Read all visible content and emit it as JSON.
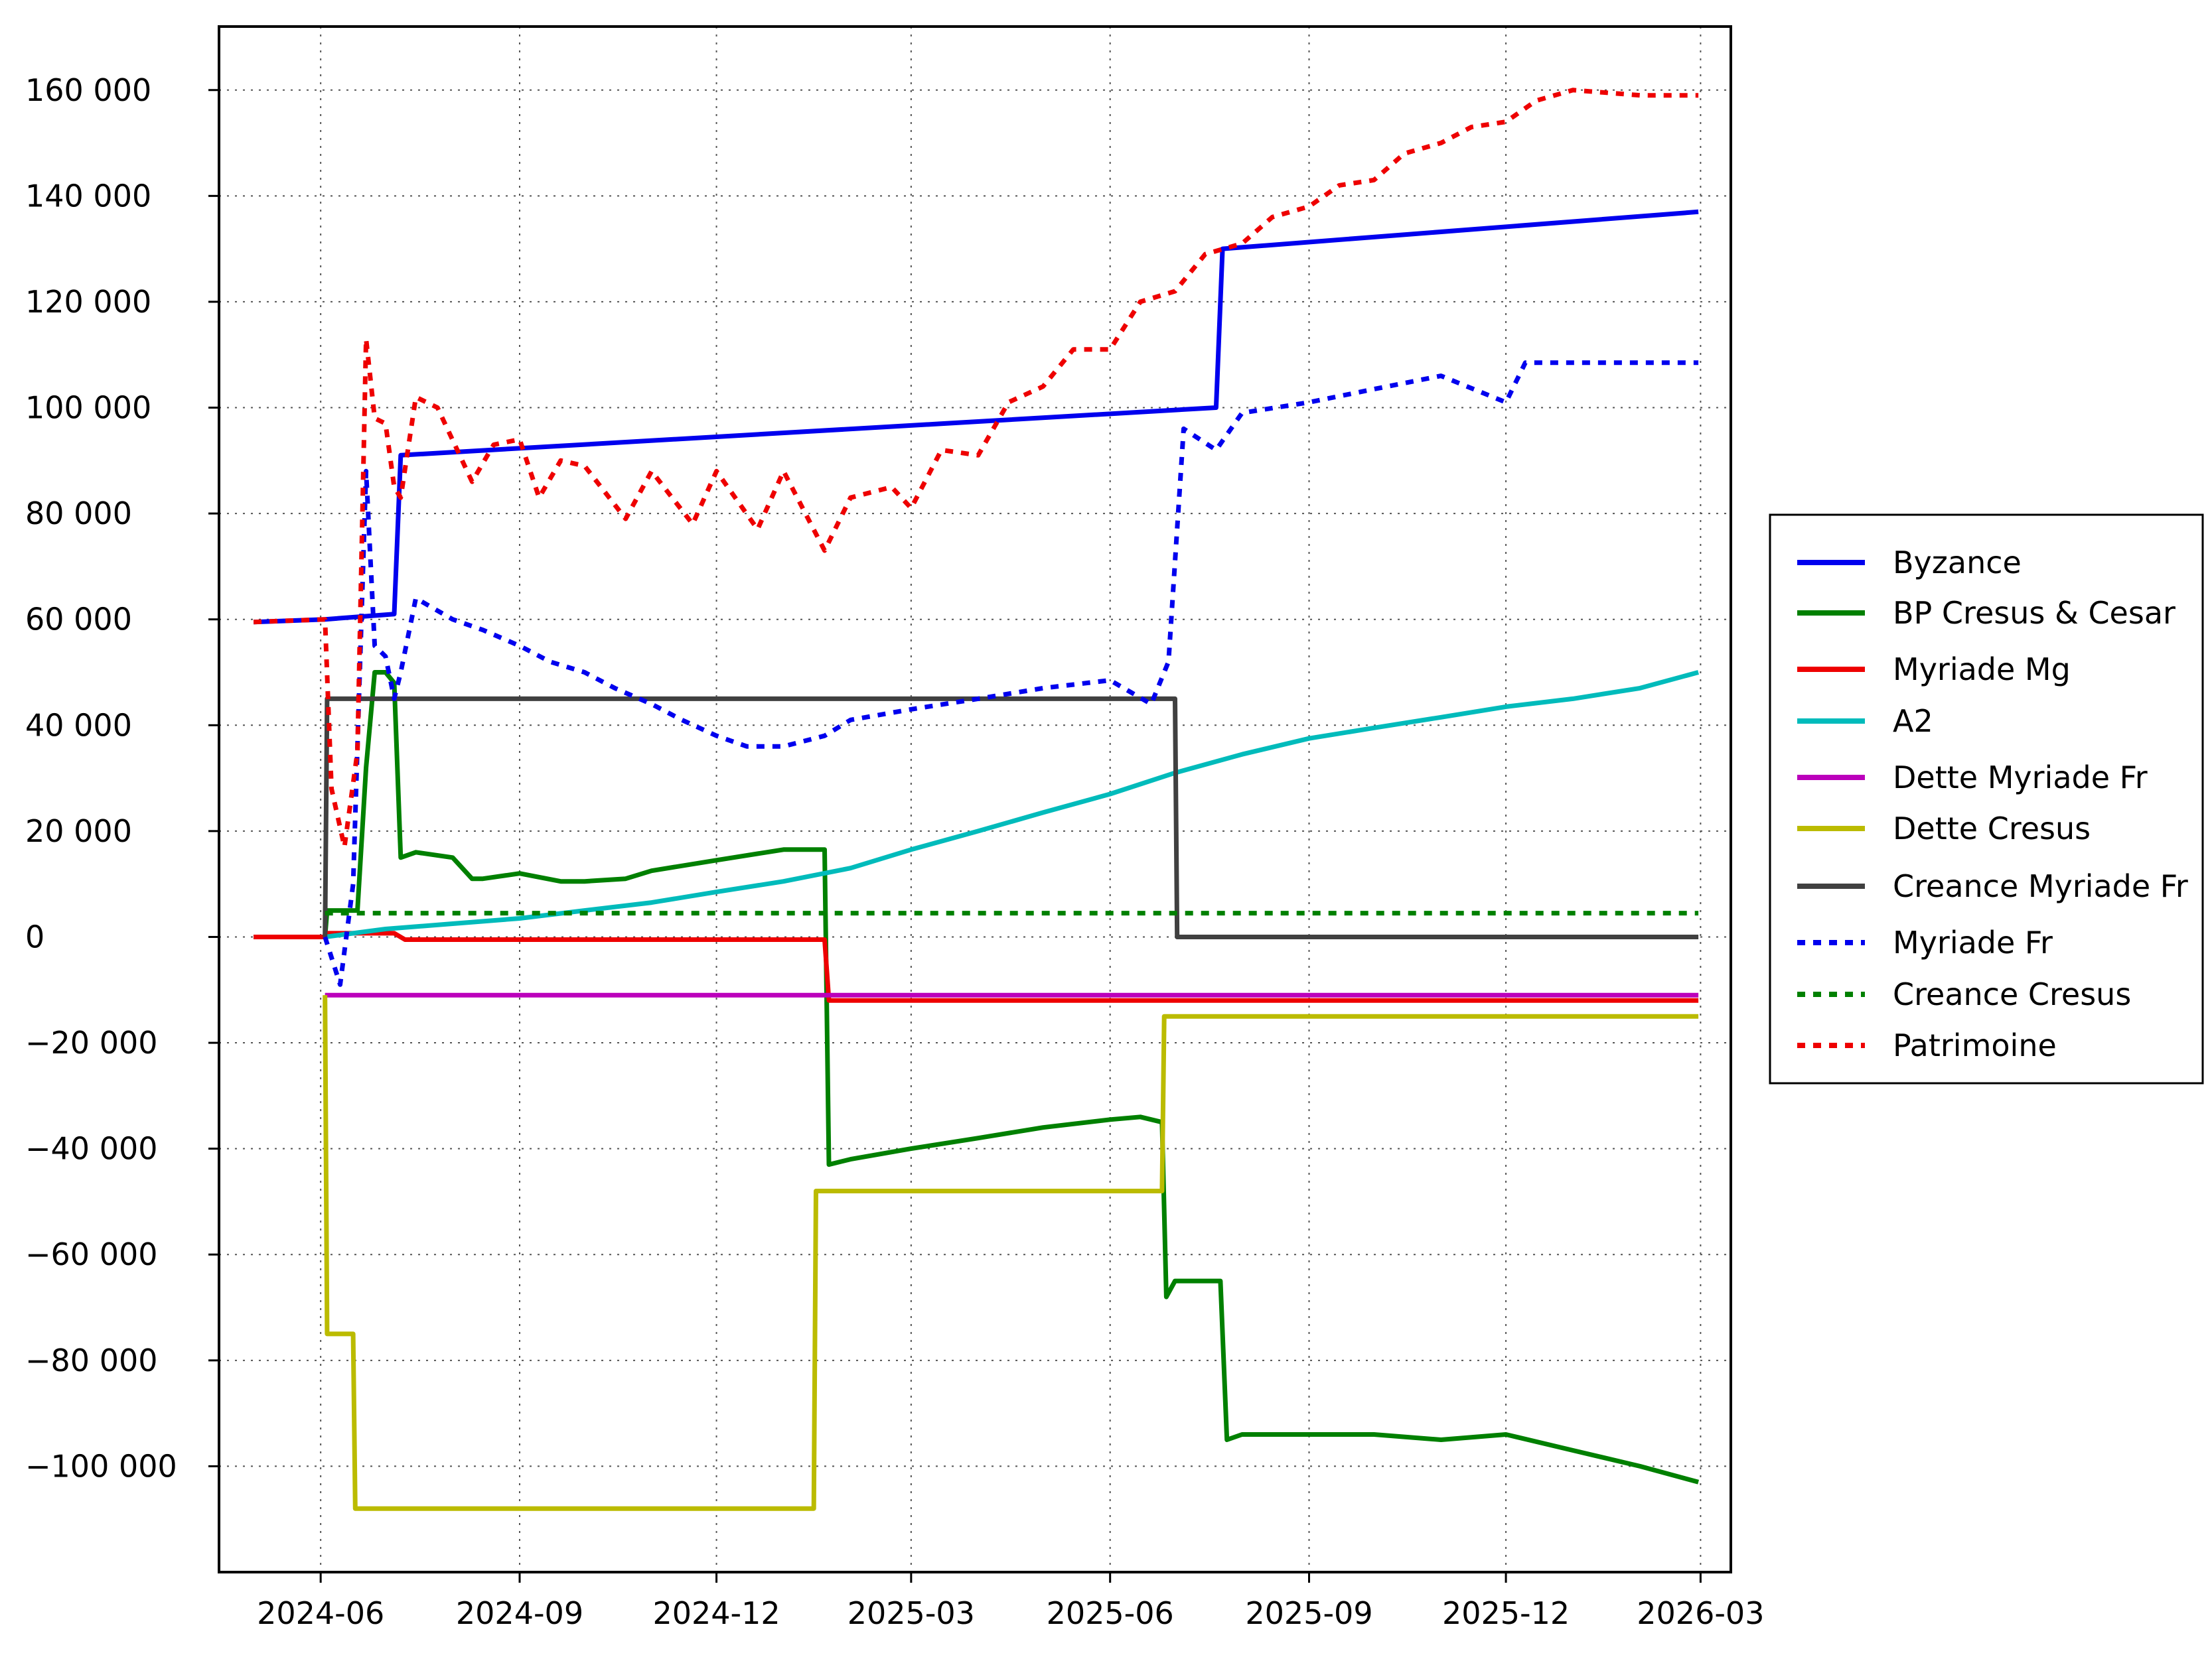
{
  "chart_data": {
    "type": "line",
    "title": "",
    "xlabel": "",
    "ylabel": "",
    "x_ticks": [
      "2024-06",
      "2024-09",
      "2024-12",
      "2025-03",
      "2025-06",
      "2025-09",
      "2025-12",
      "2026-03"
    ],
    "y_ticks": [
      {
        "value": 160000,
        "label": "160 000"
      },
      {
        "value": 140000,
        "label": "140 000"
      },
      {
        "value": 120000,
        "label": "120 000"
      },
      {
        "value": 100000,
        "label": "100 000"
      },
      {
        "value": 80000,
        "label": "80 000"
      },
      {
        "value": 60000,
        "label": "60 000"
      },
      {
        "value": 40000,
        "label": "40 000"
      },
      {
        "value": 20000,
        "label": "20 000"
      },
      {
        "value": 0,
        "label": "0"
      },
      {
        "value": -20000,
        "label": "−20 000"
      },
      {
        "value": -40000,
        "label": "−40 000"
      },
      {
        "value": -60000,
        "label": "−60 000"
      },
      {
        "value": -80000,
        "label": "−80 000"
      },
      {
        "value": -100000,
        "label": "−100 000"
      }
    ],
    "xlim": [
      "2024-04-15",
      "2026-03-15"
    ],
    "ylim": [
      -120000,
      172000
    ],
    "grid": true,
    "legend_position": "right",
    "series": [
      {
        "name": "Byzance",
        "color": "#0000ee",
        "style": "solid",
        "x": [
          "2024-05-01",
          "2024-06-03",
          "2024-07-05",
          "2024-07-08",
          "2025-07-20",
          "2025-07-23",
          "2026-02-28"
        ],
        "y": [
          59500,
          60000,
          61000,
          91000,
          100000,
          130000,
          137000
        ]
      },
      {
        "name": "BP Cresus & Cesar",
        "color": "#008000",
        "style": "solid",
        "x": [
          "2024-05-01",
          "2024-06-03",
          "2024-06-04",
          "2024-06-18",
          "2024-06-22",
          "2024-06-26",
          "2024-07-01",
          "2024-07-05",
          "2024-07-08",
          "2024-07-15",
          "2024-08-01",
          "2024-08-10",
          "2024-08-15",
          "2024-09-01",
          "2024-09-20",
          "2024-10-01",
          "2024-10-20",
          "2024-11-01",
          "2024-12-01",
          "2025-01-01",
          "2025-01-20",
          "2025-01-22",
          "2025-02-01",
          "2025-03-01",
          "2025-04-01",
          "2025-05-01",
          "2025-06-01",
          "2025-06-15",
          "2025-06-25",
          "2025-06-27",
          "2025-07-01",
          "2025-07-22",
          "2025-07-25",
          "2025-08-01",
          "2025-09-01",
          "2025-10-01",
          "2025-11-01",
          "2025-12-01",
          "2026-01-01",
          "2026-02-01",
          "2026-02-28"
        ],
        "y": [
          0,
          0,
          5000,
          5000,
          32000,
          50000,
          50000,
          48000,
          15000,
          16000,
          15000,
          11000,
          11000,
          12000,
          10500,
          10500,
          11000,
          12500,
          14500,
          16500,
          16500,
          -43000,
          -42000,
          -40000,
          -38000,
          -36000,
          -34500,
          -34000,
          -35000,
          -68000,
          -65000,
          -65000,
          -95000,
          -94000,
          -94000,
          -94000,
          -95000,
          -94000,
          -97000,
          -100000,
          -103000
        ]
      },
      {
        "name": "Myriade Mg",
        "color": "#ee0000",
        "style": "solid",
        "x": [
          "2024-05-01",
          "2024-06-03",
          "2024-06-04",
          "2024-07-05",
          "2024-07-10",
          "2025-01-20",
          "2025-01-22",
          "2026-02-28"
        ],
        "y": [
          0,
          0,
          700,
          700,
          -500,
          -500,
          -12000,
          -12000
        ]
      },
      {
        "name": "A2",
        "color": "#00bbbb",
        "style": "solid",
        "x": [
          "2024-06-03",
          "2024-07-01",
          "2024-08-01",
          "2024-09-01",
          "2024-10-01",
          "2024-11-01",
          "2024-12-01",
          "2025-01-01",
          "2025-02-01",
          "2025-03-01",
          "2025-04-01",
          "2025-05-01",
          "2025-06-01",
          "2025-07-01",
          "2025-08-01",
          "2025-09-01",
          "2025-10-01",
          "2025-11-01",
          "2025-12-01",
          "2026-01-01",
          "2026-02-01",
          "2026-02-28"
        ],
        "y": [
          0,
          1500,
          2500,
          3500,
          5000,
          6500,
          8500,
          10500,
          13000,
          16500,
          20000,
          23500,
          27000,
          31000,
          34500,
          37500,
          39500,
          41500,
          43500,
          45000,
          47000,
          50000
        ]
      },
      {
        "name": "Dette Myriade Fr",
        "color": "#bb00bb",
        "style": "solid",
        "x": [
          "2024-06-03",
          "2026-02-28"
        ],
        "y": [
          -11000,
          -11000
        ]
      },
      {
        "name": "Dette Cresus",
        "color": "#bbbb00",
        "style": "solid",
        "x": [
          "2024-06-03",
          "2024-06-04",
          "2024-06-16",
          "2024-06-17",
          "2025-01-15",
          "2025-01-16",
          "2025-06-25",
          "2025-06-26",
          "2026-02-28"
        ],
        "y": [
          -11000,
          -75000,
          -75000,
          -108000,
          -108000,
          -48000,
          -48000,
          -15000,
          -15000
        ]
      },
      {
        "name": "Creance Myriade Fr",
        "color": "#404040",
        "style": "solid",
        "x": [
          "2024-06-03",
          "2024-06-04",
          "2025-07-01",
          "2025-07-02",
          "2026-02-28"
        ],
        "y": [
          0,
          45000,
          45000,
          0,
          0
        ]
      },
      {
        "name": "Myriade Fr",
        "color": "#0000ee",
        "style": "dotted",
        "x": [
          "2024-06-03",
          "2024-06-10",
          "2024-06-16",
          "2024-06-22",
          "2024-06-26",
          "2024-07-01",
          "2024-07-05",
          "2024-07-08",
          "2024-07-15",
          "2024-08-01",
          "2024-08-15",
          "2024-09-01",
          "2024-09-15",
          "2024-10-01",
          "2024-10-15",
          "2024-11-01",
          "2024-11-15",
          "2024-12-01",
          "2024-12-15",
          "2025-01-01",
          "2025-01-20",
          "2025-02-01",
          "2025-03-01",
          "2025-04-01",
          "2025-05-01",
          "2025-06-01",
          "2025-06-20",
          "2025-06-28",
          "2025-07-05",
          "2025-07-20",
          "2025-08-01",
          "2025-09-01",
          "2025-10-01",
          "2025-11-01",
          "2025-12-01",
          "2025-12-10",
          "2026-02-28"
        ],
        "y": [
          0,
          -9000,
          10000,
          88000,
          55000,
          53000,
          45000,
          50000,
          64000,
          60000,
          58000,
          55000,
          52000,
          50000,
          47000,
          44000,
          41000,
          38000,
          36000,
          36000,
          38000,
          41000,
          43000,
          45000,
          47000,
          48500,
          44000,
          52000,
          96000,
          92000,
          99000,
          101000,
          103500,
          106000,
          101000,
          108500,
          108500
        ]
      },
      {
        "name": "Creance Cresus",
        "color": "#008000",
        "style": "dotted",
        "x": [
          "2024-06-03",
          "2026-02-28"
        ],
        "y": [
          4500,
          4500
        ]
      },
      {
        "name": "Patrimoine",
        "color": "#ee0000",
        "style": "dotted",
        "x": [
          "2024-05-01",
          "2024-06-03",
          "2024-06-06",
          "2024-06-12",
          "2024-06-18",
          "2024-06-22",
          "2024-06-26",
          "2024-07-01",
          "2024-07-05",
          "2024-07-08",
          "2024-07-15",
          "2024-07-25",
          "2024-08-10",
          "2024-08-20",
          "2024-09-01",
          "2024-09-10",
          "2024-09-20",
          "2024-10-01",
          "2024-10-20",
          "2024-11-01",
          "2024-11-20",
          "2024-12-01",
          "2024-12-20",
          "2025-01-01",
          "2025-01-20",
          "2025-02-01",
          "2025-02-20",
          "2025-03-01",
          "2025-03-15",
          "2025-04-01",
          "2025-04-15",
          "2025-05-01",
          "2025-05-15",
          "2025-06-01",
          "2025-06-15",
          "2025-07-01",
          "2025-07-15",
          "2025-08-01",
          "2025-08-15",
          "2025-09-01",
          "2025-09-15",
          "2025-10-01",
          "2025-10-15",
          "2025-11-01",
          "2025-11-15",
          "2025-12-01",
          "2025-12-15",
          "2026-01-01",
          "2026-02-01",
          "2026-02-28"
        ],
        "y": [
          59500,
          60000,
          28000,
          17000,
          35000,
          113000,
          98000,
          97000,
          85000,
          83000,
          102000,
          100000,
          86000,
          93000,
          94000,
          83000,
          90000,
          89000,
          79000,
          88000,
          78000,
          88000,
          77000,
          88000,
          73000,
          83000,
          85000,
          81000,
          92000,
          91000,
          101000,
          104000,
          111000,
          111000,
          120000,
          122000,
          129000,
          131000,
          136000,
          138000,
          142000,
          143000,
          148000,
          150000,
          153000,
          154000,
          158000,
          160000,
          159000,
          159000
        ]
      }
    ]
  }
}
